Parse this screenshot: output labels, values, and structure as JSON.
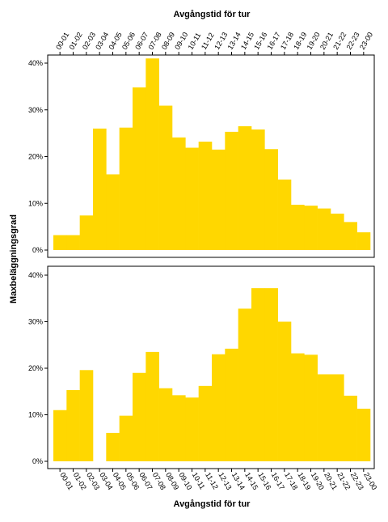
{
  "chart_data": {
    "type": "bar",
    "top_axis_title": "Avgångstid för tur",
    "xlabel": "Avgångstid för tur",
    "ylabel": "Maxbeläggningsgrad",
    "bar_color": "#FFD700",
    "grid": false,
    "ylim": [
      0,
      42
    ],
    "y_ticks": [
      "0%",
      "10%",
      "20%",
      "30%",
      "40%"
    ],
    "y_tick_values": [
      0,
      10,
      20,
      30,
      40
    ],
    "panels": [
      {
        "categories": [
          "00-01",
          "01-02",
          "02-03",
          "03-04",
          "04-05",
          "05-06",
          "06-07",
          "07-08",
          "08-09",
          "09-10",
          "10-11",
          "11-12",
          "12-13",
          "13-14",
          "14-15",
          "15-16",
          "16-17",
          "17-18",
          "18-19",
          "19-20",
          "20-21",
          "21-22",
          "22-23",
          "23-00"
        ],
        "values": [
          3.2,
          3.2,
          7.4,
          26.0,
          16.2,
          26.2,
          34.8,
          41.0,
          30.9,
          24.1,
          21.9,
          23.2,
          21.5,
          25.3,
          26.5,
          25.8,
          21.6,
          15.1,
          9.7,
          9.5,
          8.9,
          7.8,
          6.0,
          3.8
        ]
      },
      {
        "categories": [
          "00-01",
          "01-02",
          "02-03",
          "03-04",
          "04-05",
          "05-06",
          "06-07",
          "07-08",
          "08-09",
          "09-10",
          "10-11",
          "11-12",
          "12-13",
          "13-14",
          "14-15",
          "15-16",
          "16-17",
          "17-18",
          "18-19",
          "19-20",
          "20-21",
          "21-22",
          "22-23",
          "23-00"
        ],
        "values": [
          11.0,
          15.3,
          19.6,
          0,
          6.1,
          9.8,
          19.0,
          23.5,
          15.7,
          14.2,
          13.7,
          16.2,
          23.0,
          24.2,
          32.8,
          37.2,
          37.2,
          30.0,
          23.2,
          22.9,
          18.7,
          18.7,
          14.1,
          11.3
        ]
      }
    ]
  }
}
